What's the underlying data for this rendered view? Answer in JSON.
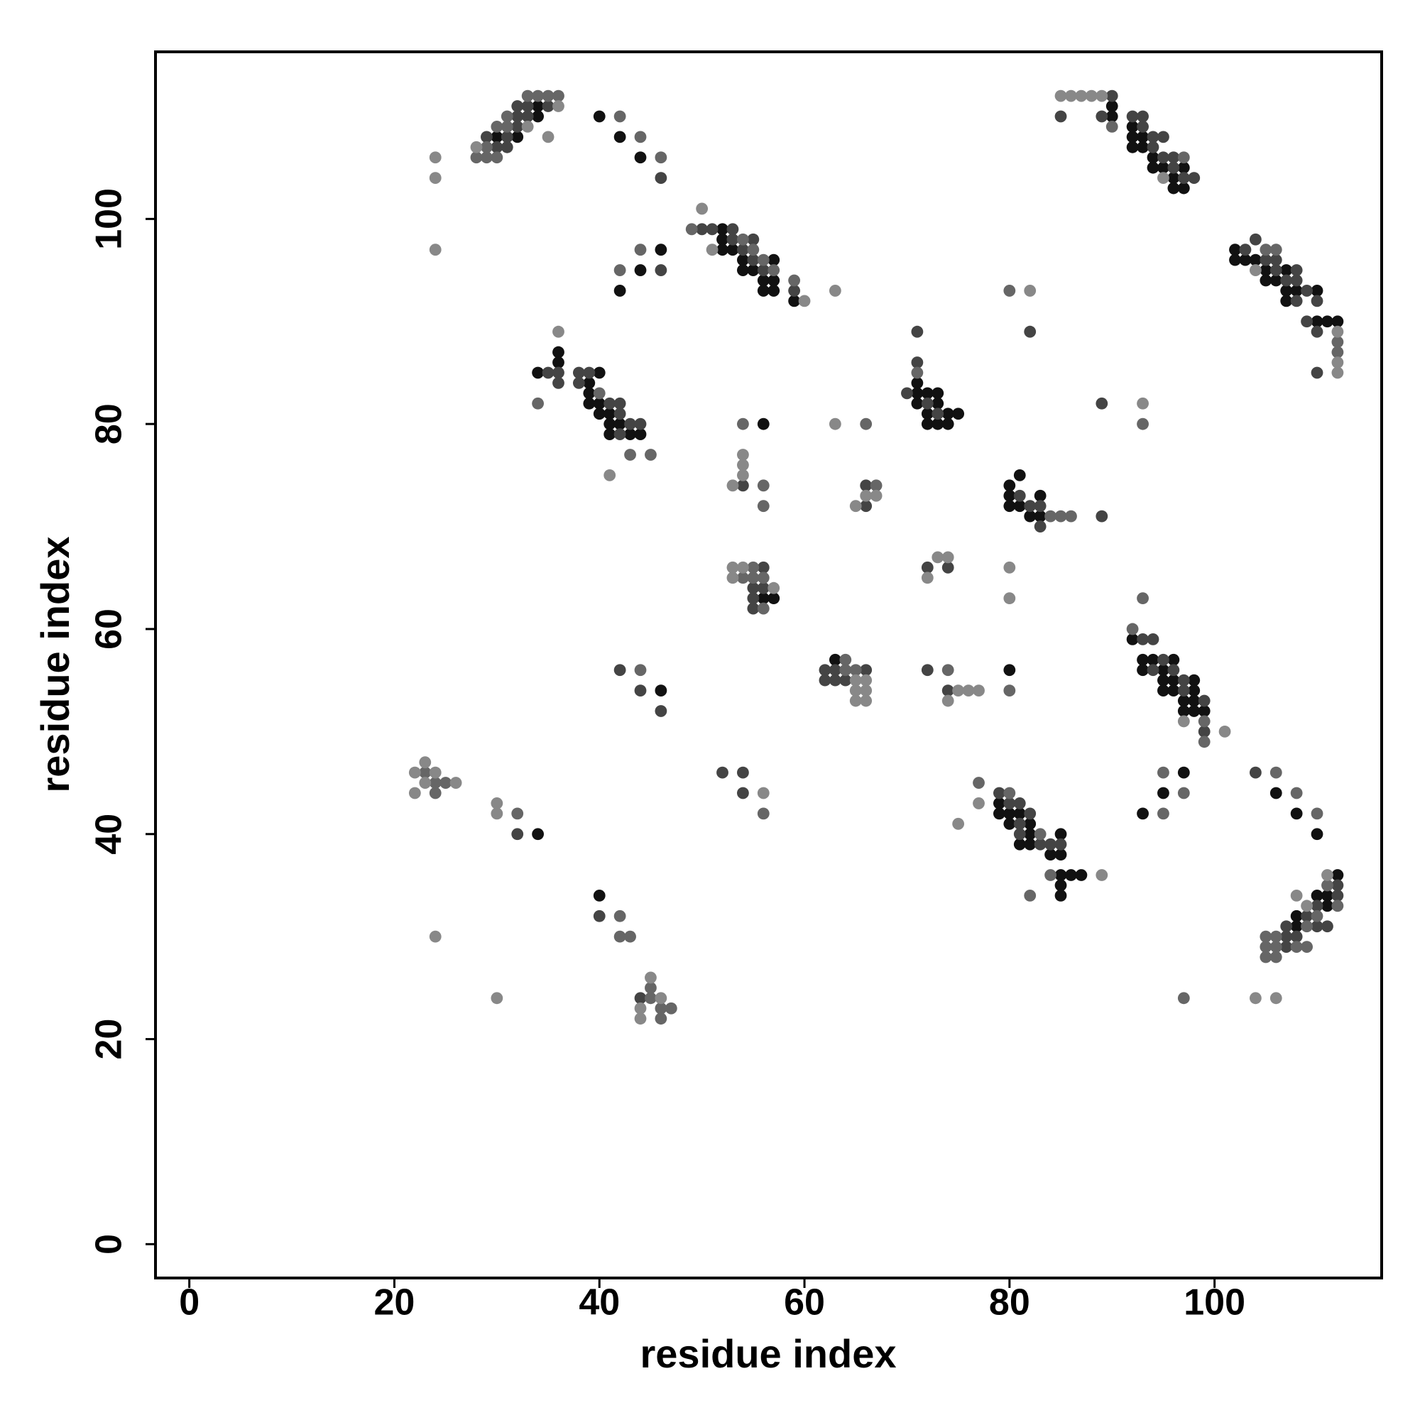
{
  "chart_data": {
    "type": "scatter",
    "xlabel": "residue index",
    "ylabel": "residue index",
    "xlim": [
      -3.3,
      116.3
    ],
    "ylim": [
      -3.3,
      116.3
    ],
    "xticks": [
      0,
      20,
      40,
      60,
      80,
      100
    ],
    "yticks": [
      0,
      20,
      40,
      60,
      80,
      100
    ],
    "series": [
      {
        "color": "#111111",
        "x": [
          34,
          34,
          30,
          32,
          40,
          42,
          44,
          52,
          52,
          52,
          53,
          54,
          57,
          54,
          55,
          56,
          57,
          56,
          57,
          59,
          46,
          44,
          42,
          36,
          36,
          34,
          40,
          39,
          39,
          39,
          40,
          40,
          41,
          41,
          42,
          41,
          43,
          44,
          56,
          56,
          57,
          63,
          71,
          71,
          72,
          73,
          71,
          73,
          72,
          74,
          75,
          72,
          73,
          74,
          80,
          81,
          80,
          83,
          80,
          81,
          82,
          83,
          80,
          46,
          34,
          92,
          93,
          94,
          96,
          93,
          95,
          95,
          96,
          98,
          95,
          96,
          98,
          97,
          98,
          97,
          98,
          99,
          79,
          79,
          80,
          81,
          80,
          82,
          82,
          81,
          82,
          84,
          85,
          85,
          85,
          86,
          87,
          85,
          85,
          97,
          95,
          93,
          106,
          108,
          110,
          112,
          110,
          111,
          111,
          108,
          108,
          40,
          90,
          90,
          92,
          92,
          93,
          92,
          93,
          94,
          94,
          95,
          97,
          96,
          96,
          97,
          102,
          102,
          103,
          104,
          105,
          107,
          105,
          106,
          107,
          108,
          110,
          107,
          110,
          111,
          112
        ],
        "y": [
          111,
          110,
          108,
          108,
          110,
          108,
          106,
          99,
          98,
          97,
          97,
          96,
          96,
          95,
          95,
          94,
          94,
          93,
          93,
          92,
          97,
          95,
          93,
          87,
          86,
          85,
          85,
          84,
          83,
          82,
          82,
          81,
          81,
          80,
          80,
          79,
          79,
          79,
          80,
          63,
          63,
          57,
          84,
          83,
          83,
          83,
          82,
          82,
          81,
          81,
          81,
          80,
          80,
          80,
          74,
          75,
          73,
          73,
          72,
          72,
          71,
          71,
          56,
          54,
          40,
          59,
          57,
          57,
          57,
          56,
          56,
          55,
          55,
          55,
          54,
          54,
          54,
          53,
          53,
          52,
          52,
          52,
          43,
          42,
          42,
          42,
          41,
          41,
          40,
          39,
          39,
          38,
          38,
          40,
          36,
          36,
          36,
          35,
          34,
          46,
          44,
          42,
          44,
          42,
          40,
          36,
          34,
          34,
          33,
          32,
          31,
          34,
          111,
          110,
          109,
          108,
          108,
          107,
          107,
          106,
          105,
          105,
          105,
          104,
          103,
          103,
          97,
          96,
          96,
          96,
          95,
          95,
          94,
          94,
          93,
          93,
          93,
          92,
          90,
          90,
          90
        ]
      },
      {
        "color": "#444444",
        "x": [
          35,
          33,
          32,
          32,
          33,
          32,
          29,
          31,
          30,
          31,
          46,
          50,
          51,
          53,
          53,
          55,
          54,
          55,
          56,
          59,
          46,
          35,
          36,
          36,
          38,
          39,
          38,
          41,
          42,
          42,
          43,
          44,
          42,
          54,
          56,
          55,
          56,
          55,
          55,
          66,
          66,
          71,
          71,
          70,
          72,
          73,
          82,
          89,
          81,
          82,
          83,
          83,
          89,
          72,
          74,
          62,
          63,
          62,
          63,
          64,
          66,
          72,
          74,
          42,
          44,
          46,
          93,
          94,
          95,
          94,
          96,
          97,
          97,
          99,
          99,
          32,
          52,
          54,
          54,
          79,
          80,
          81,
          82,
          81,
          81,
          83,
          84,
          85,
          104,
          112,
          112,
          110,
          109,
          107,
          110,
          111,
          107,
          108,
          107,
          40,
          44,
          90,
          85,
          89,
          92,
          93,
          93,
          94,
          95,
          94,
          95,
          96,
          96,
          97,
          98,
          104,
          103,
          105,
          106,
          106,
          108,
          107,
          108,
          109,
          108,
          110,
          109,
          110,
          110
        ],
        "y": [
          111,
          111,
          111,
          110,
          110,
          109,
          108,
          108,
          107,
          107,
          104,
          99,
          99,
          99,
          98,
          98,
          97,
          96,
          95,
          93,
          95,
          85,
          85,
          84,
          85,
          85,
          84,
          82,
          82,
          81,
          80,
          80,
          79,
          74,
          66,
          64,
          64,
          63,
          62,
          72,
          74,
          89,
          86,
          83,
          82,
          81,
          89,
          82,
          73,
          72,
          72,
          70,
          71,
          66,
          66,
          56,
          56,
          55,
          55,
          55,
          56,
          56,
          54,
          56,
          54,
          52,
          59,
          59,
          57,
          56,
          56,
          55,
          54,
          53,
          50,
          40,
          46,
          46,
          44,
          44,
          43,
          43,
          42,
          41,
          40,
          39,
          39,
          39,
          46,
          35,
          34,
          33,
          32,
          31,
          31,
          31,
          30,
          30,
          29,
          32,
          24,
          112,
          110,
          110,
          110,
          110,
          109,
          108,
          108,
          107,
          106,
          106,
          105,
          104,
          104,
          98,
          97,
          96,
          96,
          95,
          95,
          94,
          94,
          93,
          92,
          92,
          90,
          89,
          85
        ]
      },
      {
        "color": "#666666",
        "x": [
          33,
          34,
          35,
          36,
          31,
          30,
          31,
          29,
          28,
          29,
          30,
          42,
          44,
          46,
          49,
          54,
          55,
          56,
          57,
          59,
          44,
          42,
          40,
          43,
          45,
          34,
          54,
          56,
          56,
          55,
          54,
          55,
          56,
          56,
          66,
          67,
          71,
          80,
          93,
          84,
          85,
          86,
          93,
          64,
          64,
          65,
          74,
          80,
          44,
          92,
          99,
          99,
          23,
          24,
          25,
          24,
          32,
          56,
          77,
          80,
          83,
          84,
          82,
          95,
          97,
          95,
          106,
          108,
          110,
          111,
          112,
          110,
          109,
          106,
          105,
          105,
          106,
          108,
          109,
          105,
          106,
          42,
          42,
          43,
          45,
          45,
          46,
          47,
          46,
          97,
          90,
          97,
          105,
          106,
          112,
          112
        ],
        "y": [
          112,
          112,
          112,
          112,
          110,
          109,
          109,
          107,
          106,
          106,
          106,
          110,
          108,
          106,
          99,
          98,
          97,
          96,
          95,
          94,
          97,
          95,
          83,
          77,
          77,
          82,
          80,
          74,
          72,
          66,
          65,
          65,
          65,
          62,
          80,
          74,
          85,
          93,
          80,
          71,
          71,
          71,
          63,
          57,
          56,
          56,
          56,
          54,
          56,
          60,
          51,
          49,
          46,
          45,
          45,
          44,
          42,
          42,
          45,
          44,
          40,
          36,
          34,
          46,
          44,
          42,
          46,
          44,
          42,
          35,
          33,
          32,
          31,
          30,
          30,
          29,
          29,
          29,
          29,
          28,
          28,
          32,
          30,
          30,
          25,
          24,
          23,
          23,
          22,
          24,
          109,
          106,
          97,
          97,
          88,
          87
        ]
      },
      {
        "color": "#888888",
        "x": [
          36,
          33,
          35,
          28,
          24,
          24,
          24,
          50,
          51,
          60,
          63,
          36,
          41,
          54,
          54,
          54,
          53,
          53,
          54,
          53,
          57,
          63,
          65,
          66,
          67,
          82,
          93,
          73,
          74,
          72,
          80,
          80,
          65,
          66,
          65,
          66,
          65,
          66,
          75,
          76,
          77,
          74,
          97,
          101,
          22,
          23,
          24,
          23,
          26,
          22,
          30,
          30,
          56,
          77,
          75,
          89,
          111,
          108,
          109,
          24,
          30,
          45,
          46,
          44,
          44,
          104,
          106,
          85,
          86,
          87,
          88,
          89,
          95,
          104,
          112,
          112,
          112
        ],
        "y": [
          111,
          109,
          108,
          107,
          106,
          104,
          97,
          101,
          97,
          92,
          93,
          89,
          75,
          77,
          76,
          75,
          74,
          66,
          66,
          65,
          64,
          80,
          72,
          73,
          73,
          93,
          82,
          67,
          67,
          65,
          66,
          63,
          55,
          55,
          54,
          54,
          53,
          53,
          54,
          54,
          54,
          53,
          51,
          50,
          46,
          47,
          46,
          45,
          45,
          44,
          43,
          42,
          44,
          43,
          41,
          36,
          36,
          34,
          33,
          30,
          24,
          26,
          24,
          23,
          22,
          24,
          24,
          112,
          112,
          112,
          112,
          112,
          104,
          95,
          89,
          86,
          85
        ]
      }
    ]
  }
}
